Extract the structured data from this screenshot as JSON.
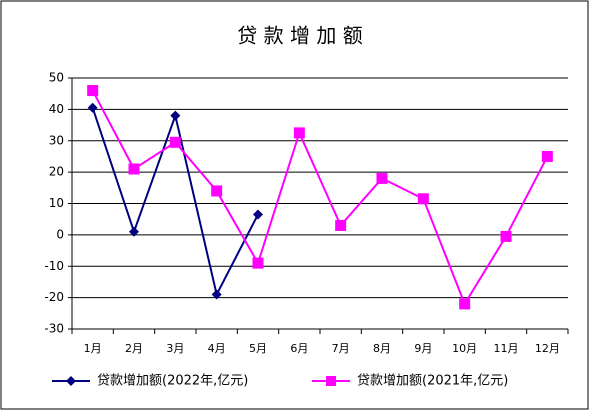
{
  "chart_data": {
    "type": "line",
    "title": "贷 款 增 加 额",
    "categories": [
      "1月",
      "2月",
      "3月",
      "4月",
      "5月",
      "6月",
      "7月",
      "8月",
      "9月",
      "10月",
      "11月",
      "12月"
    ],
    "series": [
      {
        "name": "贷款增加额(2022年,亿元)",
        "color": "#000080",
        "marker": "diamond",
        "values": [
          40.5,
          1,
          38,
          -19,
          6.5,
          null,
          null,
          null,
          null,
          null,
          null,
          null
        ]
      },
      {
        "name": "贷款增加额(2021年,亿元)",
        "color": "#ff00ff",
        "marker": "square",
        "values": [
          46,
          21,
          29.5,
          14,
          -9,
          32.5,
          3,
          18,
          11.5,
          -22,
          -0.5,
          25
        ]
      }
    ],
    "ylim": [
      -30,
      50
    ],
    "yticks": [
      -30,
      -20,
      -10,
      0,
      10,
      20,
      30,
      40,
      50
    ],
    "grid": true,
    "legend": "bottom"
  }
}
